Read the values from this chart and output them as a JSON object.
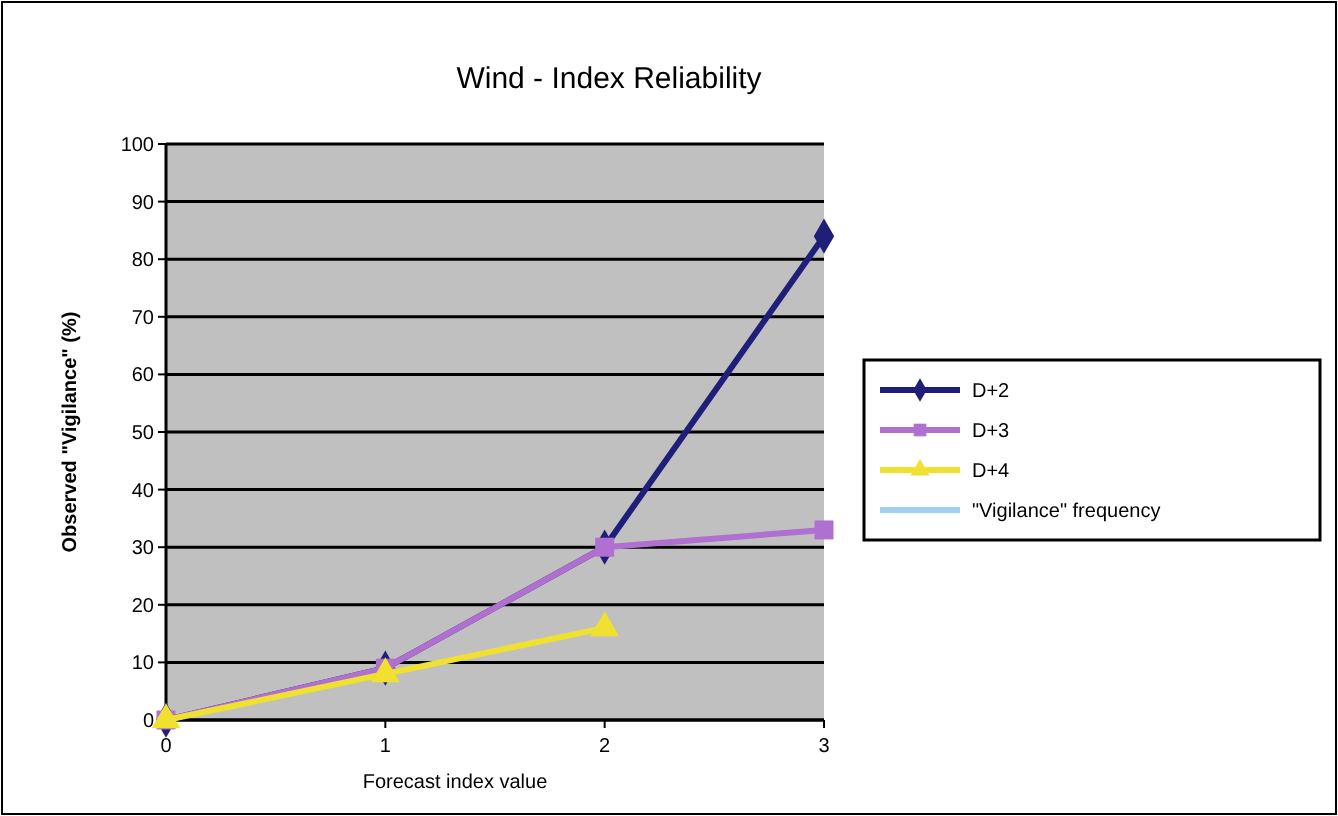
{
  "chart_data": {
    "type": "line",
    "title": "Wind - Index Reliability",
    "xlabel": "Forecast index value",
    "ylabel": "Observed \"Vigilance\" (%)",
    "x": [
      0,
      1,
      2,
      3
    ],
    "xlim": [
      0,
      3
    ],
    "xticks": [
      0,
      1,
      2,
      3
    ],
    "ylim": [
      0,
      100
    ],
    "yticks": [
      0,
      10,
      20,
      30,
      40,
      50,
      60,
      70,
      80,
      90,
      100
    ],
    "grid": "y",
    "legend": "right",
    "series": [
      {
        "name": "D+2",
        "color": "#1f1f7a",
        "marker": "diamond",
        "values": [
          0,
          9,
          30,
          84
        ]
      },
      {
        "name": "D+3",
        "color": "#b070d0",
        "marker": "square",
        "values": [
          0,
          9,
          30,
          33
        ]
      },
      {
        "name": "D+4",
        "color": "#f0e030",
        "marker": "triangle",
        "values": [
          0,
          8,
          16,
          null
        ]
      },
      {
        "name": "\"Vigilance\" frequency",
        "color": "#a0d0f0",
        "marker": "none",
        "values": [
          null,
          null,
          null,
          null
        ]
      }
    ]
  }
}
